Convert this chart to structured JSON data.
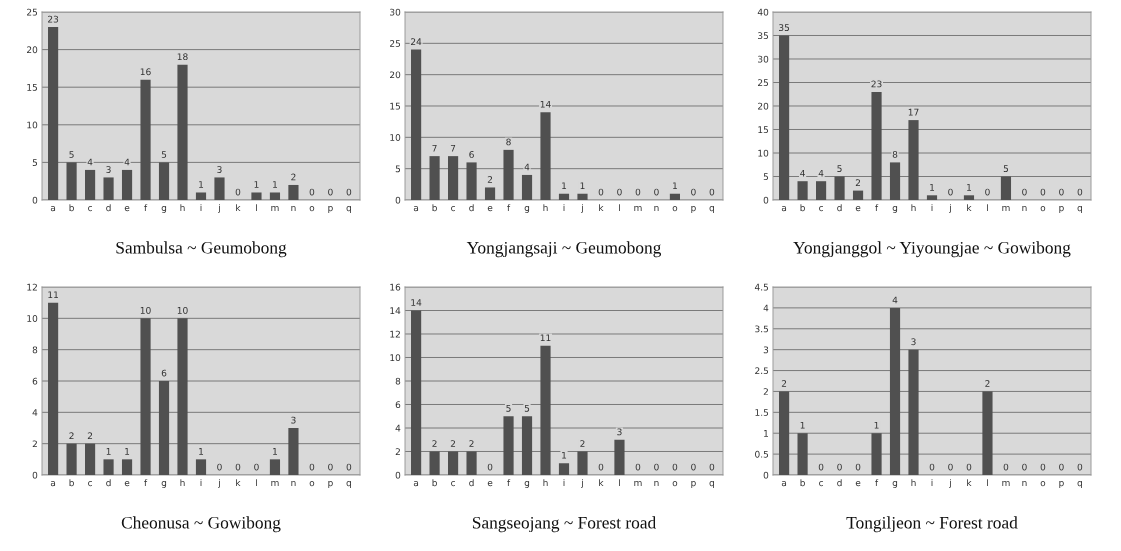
{
  "chart_data": [
    {
      "type": "bar",
      "title": "Sambulsa ~ Geumobong",
      "categories": [
        "a",
        "b",
        "c",
        "d",
        "e",
        "f",
        "g",
        "h",
        "i",
        "j",
        "k",
        "l",
        "m",
        "n",
        "o",
        "p",
        "q"
      ],
      "values": [
        23,
        5,
        4,
        3,
        4,
        16,
        5,
        18,
        1,
        3,
        0,
        1,
        1,
        2,
        0,
        0,
        0
      ],
      "color": "#505050",
      "ylim": [
        0,
        25
      ],
      "yticks": [
        0,
        5,
        10,
        15,
        20,
        25
      ],
      "grid": "y",
      "data_labels": true
    },
    {
      "type": "bar",
      "title": "Yongjangsaji ~ Geumobong",
      "categories": [
        "a",
        "b",
        "c",
        "d",
        "e",
        "f",
        "g",
        "h",
        "i",
        "j",
        "k",
        "l",
        "m",
        "n",
        "o",
        "p",
        "q"
      ],
      "values": [
        24,
        7,
        7,
        6,
        2,
        8,
        4,
        14,
        1,
        1,
        0,
        0,
        0,
        0,
        1,
        0,
        0
      ],
      "color": "#505050",
      "ylim": [
        0,
        30
      ],
      "yticks": [
        0,
        5,
        10,
        15,
        20,
        25,
        30
      ],
      "grid": "y",
      "data_labels": true
    },
    {
      "type": "bar",
      "title": "Yongjanggol ~ Yiyoungjae ~ Gowibong",
      "categories": [
        "a",
        "b",
        "c",
        "d",
        "e",
        "f",
        "g",
        "h",
        "i",
        "j",
        "k",
        "l",
        "m",
        "n",
        "o",
        "p",
        "q"
      ],
      "values": [
        35,
        4,
        4,
        5,
        2,
        23,
        8,
        17,
        1,
        0,
        1,
        0,
        5,
        0,
        0,
        0,
        0
      ],
      "color": "#505050",
      "ylim": [
        0,
        40
      ],
      "yticks": [
        0,
        5,
        10,
        15,
        20,
        25,
        30,
        35,
        40
      ],
      "grid": "y",
      "data_labels": true
    },
    {
      "type": "bar",
      "title": "Cheonusa ~ Gowibong",
      "categories": [
        "a",
        "b",
        "c",
        "d",
        "e",
        "f",
        "g",
        "h",
        "i",
        "j",
        "k",
        "l",
        "m",
        "n",
        "o",
        "p",
        "q"
      ],
      "values": [
        11,
        2,
        2,
        1,
        1,
        10,
        6,
        10,
        1,
        0,
        0,
        0,
        1,
        3,
        0,
        0,
        0
      ],
      "color": "#505050",
      "ylim": [
        0,
        12
      ],
      "yticks": [
        0,
        2,
        4,
        6,
        8,
        10,
        12
      ],
      "grid": "y",
      "data_labels": true
    },
    {
      "type": "bar",
      "title": "Sangseojang ~ Forest road",
      "categories": [
        "a",
        "b",
        "c",
        "d",
        "e",
        "f",
        "g",
        "h",
        "i",
        "j",
        "k",
        "l",
        "m",
        "n",
        "o",
        "p",
        "q"
      ],
      "values": [
        14,
        2,
        2,
        2,
        0,
        5,
        5,
        11,
        1,
        2,
        0,
        3,
        0,
        0,
        0,
        0,
        0
      ],
      "color": "#505050",
      "ylim": [
        0,
        16
      ],
      "yticks": [
        0,
        2,
        4,
        6,
        8,
        10,
        12,
        14,
        16
      ],
      "grid": "y",
      "data_labels": true
    },
    {
      "type": "bar",
      "title": "Tongiljeon ~ Forest road",
      "categories": [
        "a",
        "b",
        "c",
        "d",
        "e",
        "f",
        "g",
        "h",
        "i",
        "j",
        "k",
        "l",
        "m",
        "n",
        "o",
        "p",
        "q"
      ],
      "values": [
        2,
        1,
        0,
        0,
        0,
        1,
        4,
        3,
        0,
        0,
        0,
        2,
        0,
        0,
        0,
        0,
        0
      ],
      "color": "#505050",
      "ylim": [
        0,
        4.5
      ],
      "yticks": [
        0,
        0.5,
        1,
        1.5,
        2,
        2.5,
        3,
        3.5,
        4,
        4.5
      ],
      "grid": "y",
      "data_labels": true
    }
  ]
}
